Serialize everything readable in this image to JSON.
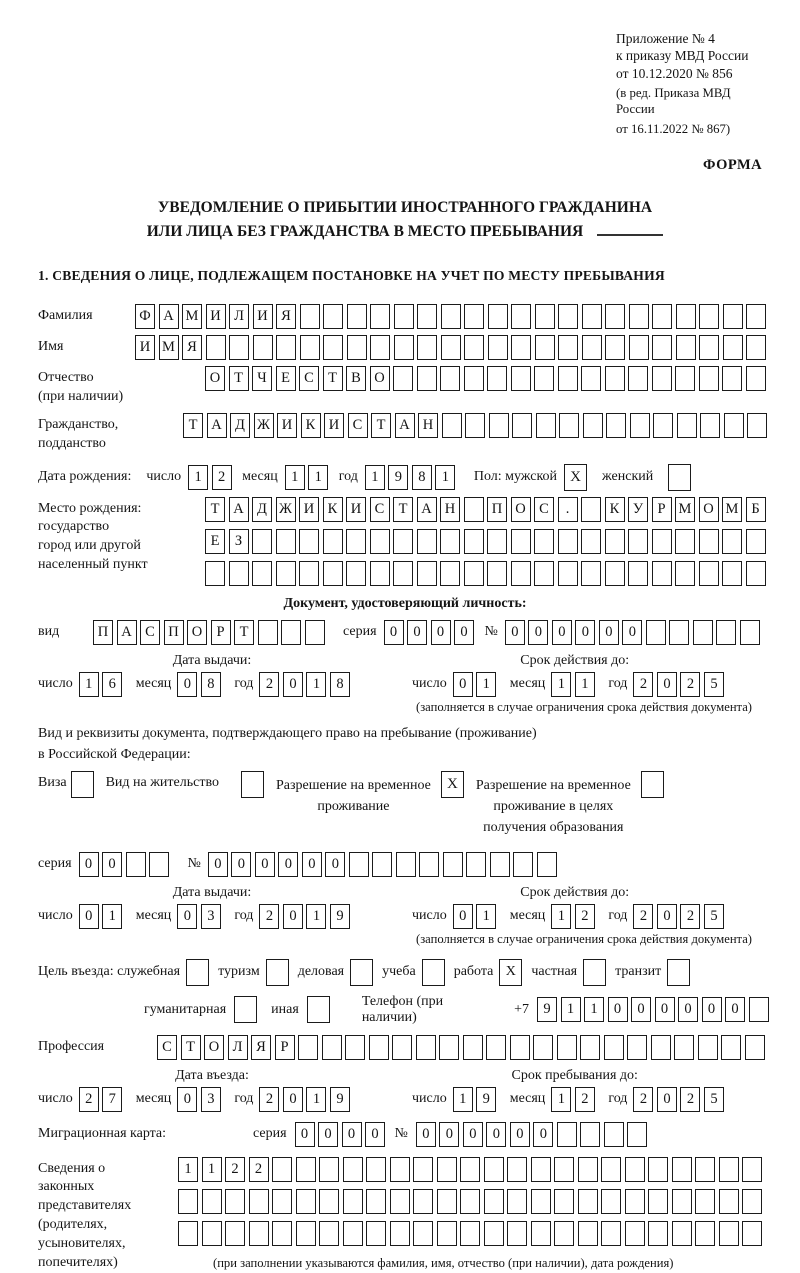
{
  "header": {
    "line1": "Приложение № 4",
    "line2": "к приказу МВД России",
    "line3": "от 10.12.2020 № 856",
    "line4": "(в ред. Приказа МВД России",
    "line5": "от 16.11.2022 № 867)",
    "forma": "ФОРМА"
  },
  "title": {
    "line1": "УВЕДОМЛЕНИЕ О ПРИБЫТИИ ИНОСТРАННОГО ГРАЖДАНИНА",
    "line2": "ИЛИ ЛИЦА БЕЗ ГРАЖДАНСТВА В МЕСТО ПРЕБЫВАНИЯ"
  },
  "section_heading": "1. СВЕДЕНИЯ О ЛИЦЕ, ПОДЛЕЖАЩЕМ ПОСТАНОВКЕ НА УЧЕТ ПО МЕСТУ ПРЕБЫВАНИЯ",
  "labels": {
    "surname": "Фамилия",
    "name": "Имя",
    "patronymic": [
      "Отчество",
      "(при наличии)"
    ],
    "citizenship": [
      "Гражданство,",
      "подданство"
    ],
    "birth_date": "Дата рождения:",
    "day": "число",
    "month": "месяц",
    "year": "год",
    "sex_male": "Пол: мужской",
    "sex_female": "женский",
    "birth_place": [
      "Место рождения:",
      "государство",
      "город или другой",
      "населенный пункт"
    ],
    "identity_doc_heading": "Документ, удостоверяющий личность:",
    "doc_kind": "вид",
    "series": "серия",
    "number_sign": "№",
    "issue_date": "Дата выдачи:",
    "valid_until": "Срок действия до:",
    "limited_note": "(заполняется в случае ограничения срока действия документа)",
    "resident_doc_line1": "Вид и реквизиты документа, подтверждающего право на пребывание (проживание)",
    "resident_doc_line2": "в Российской Федерации:",
    "visa": "Виза",
    "residence_permit": "Вид на жительство",
    "temp_residence": [
      "Разрешение на временное",
      "проживание"
    ],
    "temp_residence_edu": [
      "Разрешение на временное",
      "проживание в целях",
      "получения образования"
    ],
    "purpose": "Цель въезда: служебная",
    "tourism": "туризм",
    "business": "деловая",
    "study": "учеба",
    "work": "работа",
    "private": "частная",
    "transit": "транзит",
    "humanitarian": "гуманитарная",
    "other": "иная",
    "phone": "Телефон (при наличии)",
    "phone_prefix": "+7",
    "profession": "Профессия",
    "entry_date": "Дата въезда:",
    "stay_until": "Срок пребывания до:",
    "migration_card": "Миграционная карта:",
    "representatives": [
      "Сведения о",
      "законных",
      "представителях",
      "(родителях,",
      "усыновителях,",
      "попечителях)"
    ],
    "representatives_note": "(при заполнении указываются фамилия, имя, отчество (при наличии), дата рождения)"
  },
  "fields": {
    "surname": {
      "text": "ФАМИЛИЯ",
      "count": 27
    },
    "name": {
      "text": "ИМЯ",
      "count": 27
    },
    "patronymic": {
      "text": "ОТЧЕСТВО",
      "count": 24
    },
    "citizenship": {
      "text": "ТАДЖИКИСТАН",
      "count": 25
    },
    "birth_day": {
      "text": "12",
      "count": 2
    },
    "birth_month": {
      "text": "11",
      "count": 2
    },
    "birth_year": {
      "text": "1981",
      "count": 4
    },
    "birth_place_row1": {
      "text": "ТАДЖИКИСТАН ПОС. КУРМОМБ",
      "count": 24
    },
    "birth_place_row2": {
      "text": "ЕЗ",
      "count": 24
    },
    "birth_place_row3": {
      "text": "",
      "count": 24
    },
    "doc_type": {
      "text": "ПАСПОРТ",
      "count": 10
    },
    "doc_series": {
      "text": "0000",
      "count": 4
    },
    "doc_number": {
      "text": "000000",
      "count": 11
    },
    "doc_issue_day": {
      "text": "16",
      "count": 2
    },
    "doc_issue_month": {
      "text": "08",
      "count": 2
    },
    "doc_issue_year": {
      "text": "2018",
      "count": 4
    },
    "doc_expiry_day": {
      "text": "01",
      "count": 2
    },
    "doc_expiry_month": {
      "text": "11",
      "count": 2
    },
    "doc_expiry_year": {
      "text": "2025",
      "count": 4
    },
    "permit_series": {
      "text": "00",
      "count": 4
    },
    "permit_number": {
      "text": "000000",
      "count": 15
    },
    "permit_issue_day": {
      "text": "01",
      "count": 2
    },
    "permit_issue_month": {
      "text": "03",
      "count": 2
    },
    "permit_issue_year": {
      "text": "2019",
      "count": 4
    },
    "permit_expiry_day": {
      "text": "01",
      "count": 2
    },
    "permit_expiry_month": {
      "text": "12",
      "count": 2
    },
    "permit_expiry_year": {
      "text": "2025",
      "count": 4
    },
    "phone": {
      "text": "911000000",
      "count": 10
    },
    "profession": {
      "text": "СТОЛЯР",
      "count": 26
    },
    "entry_day": {
      "text": "27",
      "count": 2
    },
    "entry_month": {
      "text": "03",
      "count": 2
    },
    "entry_year": {
      "text": "2019",
      "count": 4
    },
    "stay_day": {
      "text": "19",
      "count": 2
    },
    "stay_month": {
      "text": "12",
      "count": 2
    },
    "stay_year": {
      "text": "2025",
      "count": 4
    },
    "migration_series": {
      "text": "0000",
      "count": 4
    },
    "migration_number": {
      "text": "000000",
      "count": 10
    },
    "representatives_row1": {
      "text": "1122",
      "count": 25
    },
    "representatives_row2": {
      "text": "",
      "count": 25
    },
    "representatives_row3": {
      "text": "",
      "count": 25
    }
  },
  "checkboxes": {
    "male": true,
    "female": false,
    "visa": false,
    "residence_permit": false,
    "temp_residence": true,
    "temp_residence_edu": false,
    "official": false,
    "tourism": false,
    "business": false,
    "study": false,
    "work": true,
    "private": false,
    "transit": false,
    "humanitarian": false,
    "other": false
  }
}
